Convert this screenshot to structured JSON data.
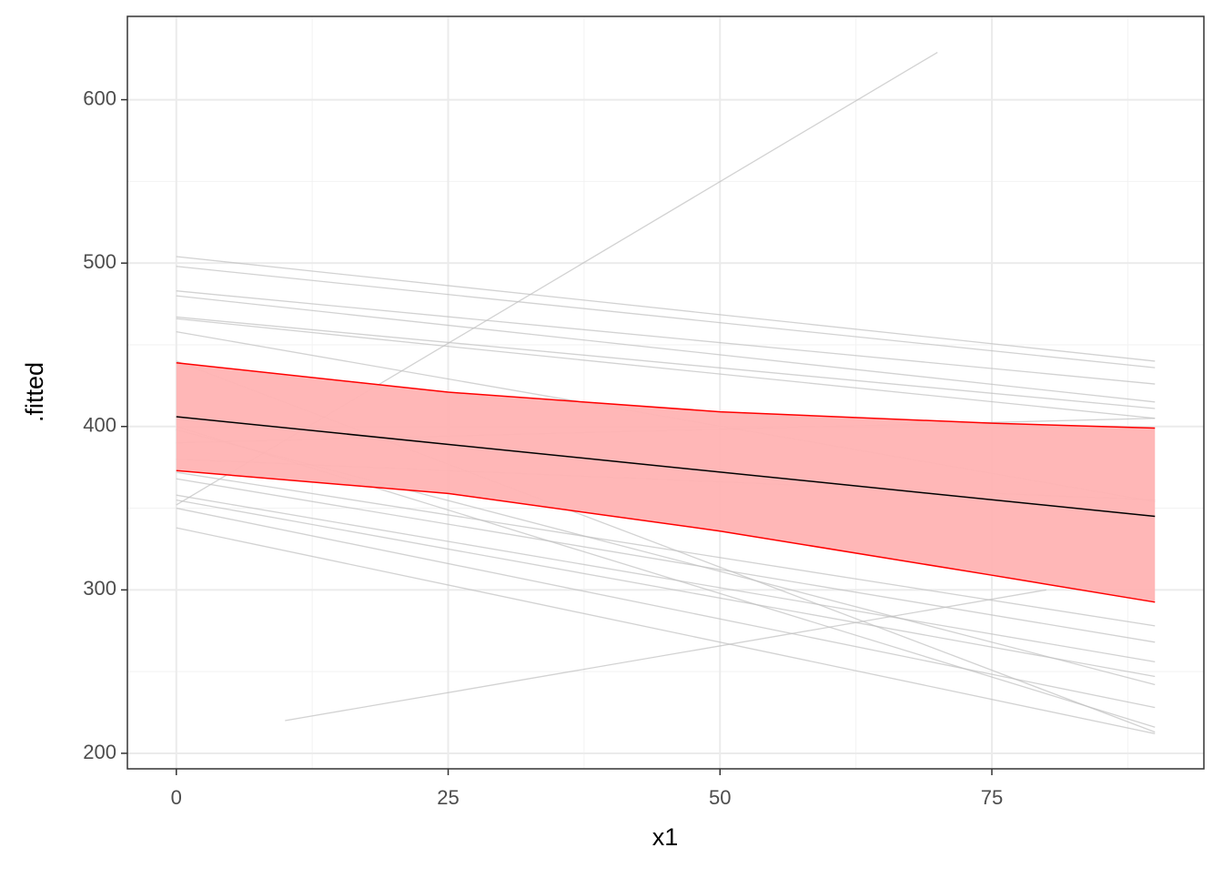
{
  "chart_data": {
    "type": "line",
    "x_label": "x1",
    "y_label": ".fitted",
    "xlim": [
      -4.5,
      94.5
    ],
    "ylim": [
      190.5,
      651
    ],
    "xticks": [
      0,
      25,
      50,
      75
    ],
    "yticks": [
      200,
      300,
      400,
      500,
      600
    ],
    "grid": true,
    "minor_grid": true,
    "series": [
      {
        "color": "#bfbfbf",
        "x": [
          10,
          80
        ],
        "values": [
          220,
          300
        ]
      },
      {
        "color": "#bfbfbf",
        "x": [
          0,
          70
        ],
        "values": [
          352,
          629
        ]
      },
      {
        "color": "#bfbfbf",
        "x": [
          0,
          90
        ],
        "values": [
          504,
          440
        ]
      },
      {
        "color": "#bfbfbf",
        "x": [
          0,
          90
        ],
        "values": [
          498,
          436
        ]
      },
      {
        "color": "#bfbfbf",
        "x": [
          0,
          90
        ],
        "values": [
          483,
          426
        ]
      },
      {
        "color": "#bfbfbf",
        "x": [
          0,
          90
        ],
        "values": [
          480,
          415
        ]
      },
      {
        "color": "#bfbfbf",
        "x": [
          0,
          90
        ],
        "values": [
          467,
          411
        ]
      },
      {
        "color": "#bfbfbf",
        "x": [
          0,
          90
        ],
        "values": [
          466,
          405
        ]
      },
      {
        "color": "#bfbfbf",
        "x": [
          0,
          90
        ],
        "values": [
          458,
          354
        ]
      },
      {
        "color": "#bfbfbf",
        "x": [
          0,
          90
        ],
        "values": [
          440,
          213
        ]
      },
      {
        "color": "#bfbfbf",
        "x": [
          0,
          90
        ],
        "values": [
          400,
          216
        ]
      },
      {
        "color": "#bfbfbf",
        "x": [
          0,
          90
        ],
        "values": [
          398,
          242
        ]
      },
      {
        "color": "#bfbfbf",
        "x": [
          0,
          90
        ],
        "values": [
          390,
          405
        ]
      },
      {
        "color": "#bfbfbf",
        "x": [
          0,
          90
        ],
        "values": [
          380,
          355
        ]
      },
      {
        "color": "#bfbfbf",
        "x": [
          0,
          90
        ],
        "values": [
          372,
          278
        ]
      },
      {
        "color": "#bfbfbf",
        "x": [
          0,
          90
        ],
        "values": [
          368,
          268
        ]
      },
      {
        "color": "#bfbfbf",
        "x": [
          0,
          90
        ],
        "values": [
          358,
          256
        ]
      },
      {
        "color": "#bfbfbf",
        "x": [
          0,
          90
        ],
        "values": [
          355,
          247
        ]
      },
      {
        "color": "#bfbfbf",
        "x": [
          0,
          90
        ],
        "values": [
          350,
          228
        ]
      },
      {
        "color": "#bfbfbf",
        "x": [
          0,
          90
        ],
        "values": [
          338,
          212
        ]
      }
    ],
    "ribbon": {
      "x": [
        0,
        25,
        50,
        75,
        90
      ],
      "lower": [
        373,
        359,
        336,
        309,
        292.5
      ],
      "upper": [
        439,
        421,
        409,
        402,
        399
      ],
      "fill": "#ffb3b3",
      "color": "#ff0000"
    },
    "fit": {
      "x": [
        0,
        90
      ],
      "values": [
        406,
        345
      ],
      "color": "#000000"
    }
  }
}
